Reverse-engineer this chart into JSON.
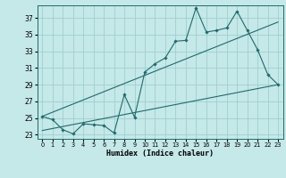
{
  "title": "",
  "xlabel": "Humidex (Indice chaleur)",
  "background_color": "#c5e8e8",
  "grid_color": "#9fcfcf",
  "line_color": "#1e6b6b",
  "xlim": [
    -0.5,
    23.5
  ],
  "ylim": [
    22.5,
    38.5
  ],
  "yticks": [
    23,
    25,
    27,
    29,
    31,
    33,
    35,
    37
  ],
  "xticks": [
    0,
    1,
    2,
    3,
    4,
    5,
    6,
    7,
    8,
    9,
    10,
    11,
    12,
    13,
    14,
    15,
    16,
    17,
    18,
    19,
    20,
    21,
    22,
    23
  ],
  "series1_x": [
    0,
    1,
    2,
    3,
    4,
    5,
    6,
    7,
    8,
    9,
    10,
    11,
    12,
    13,
    14,
    15,
    16,
    17,
    18,
    19,
    20,
    21,
    22,
    23
  ],
  "series1_y": [
    25.2,
    24.8,
    23.6,
    23.1,
    24.3,
    24.2,
    24.1,
    23.2,
    27.8,
    25.1,
    30.5,
    31.5,
    32.2,
    34.2,
    34.3,
    38.2,
    35.3,
    35.5,
    35.8,
    37.8,
    35.5,
    33.2,
    30.2,
    29.0
  ],
  "series2_x": [
    0,
    23
  ],
  "series2_y": [
    23.5,
    29.0
  ],
  "series3_x": [
    0,
    23
  ],
  "series3_y": [
    25.2,
    36.5
  ]
}
